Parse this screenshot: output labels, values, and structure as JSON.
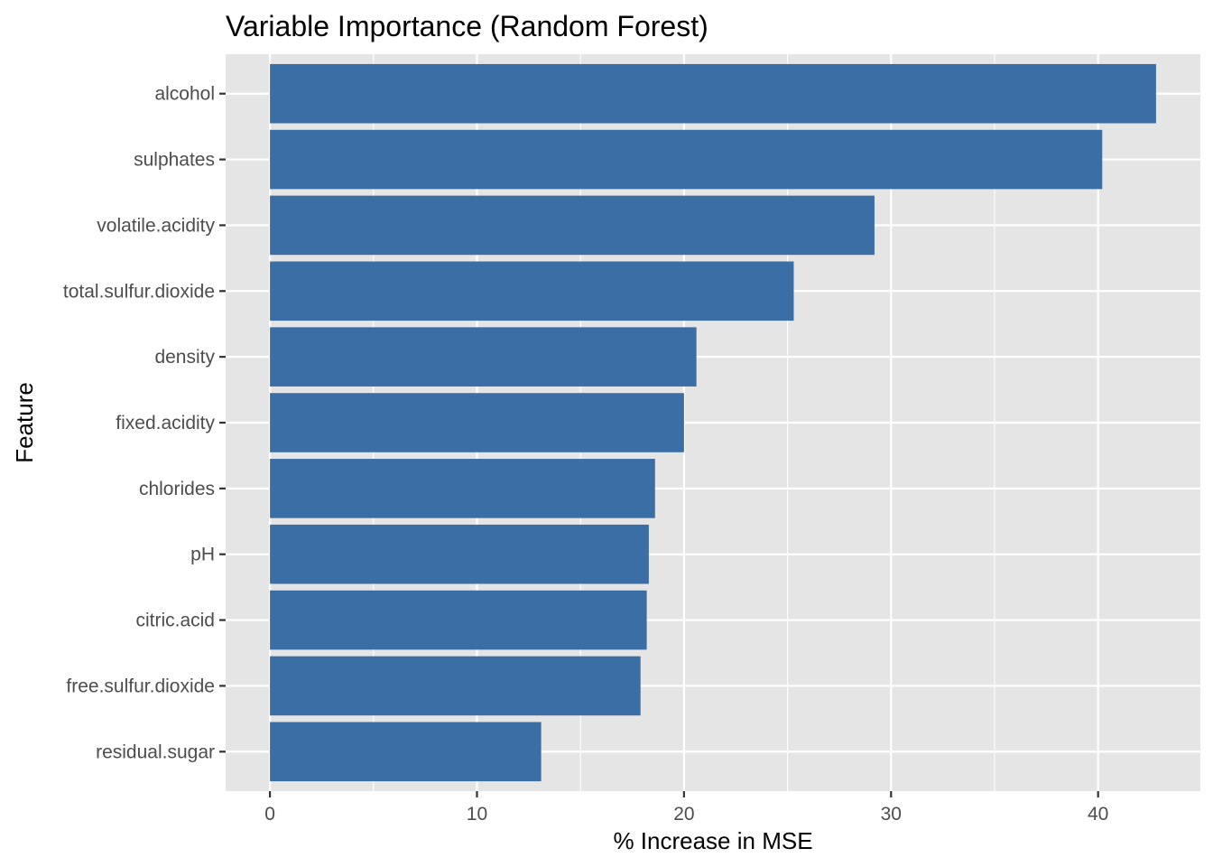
{
  "chart_data": {
    "type": "bar",
    "orientation": "horizontal",
    "title": "Variable Importance (Random Forest)",
    "xlabel": "% Increase in MSE",
    "ylabel": "Feature",
    "categories": [
      "alcohol",
      "sulphates",
      "volatile.acidity",
      "total.sulfur.dioxide",
      "density",
      "fixed.acidity",
      "chlorides",
      "pH",
      "citric.acid",
      "free.sulfur.dioxide",
      "residual.sugar"
    ],
    "values": [
      42.8,
      40.2,
      29.2,
      25.3,
      20.6,
      20.0,
      18.6,
      18.3,
      18.2,
      17.9,
      13.1
    ],
    "xlim": [
      -2.14,
      44.94
    ],
    "x_ticks": [
      "0",
      "10",
      "20",
      "30",
      "40"
    ],
    "grid": true,
    "bar_color": "#3A6EA5",
    "panel_background": "#E5E5E5",
    "gridline_color": "#FFFFFF"
  }
}
